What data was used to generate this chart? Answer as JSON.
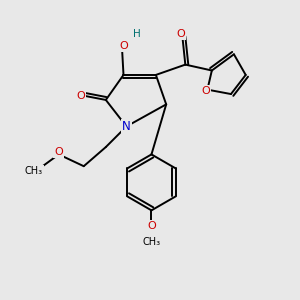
{
  "bg_color": "#e8e8e8",
  "atom_colors": {
    "C": "#000000",
    "N": "#0000cc",
    "O": "#cc0000",
    "H": "#007070"
  },
  "bond_color": "#000000",
  "line_width": 1.4
}
